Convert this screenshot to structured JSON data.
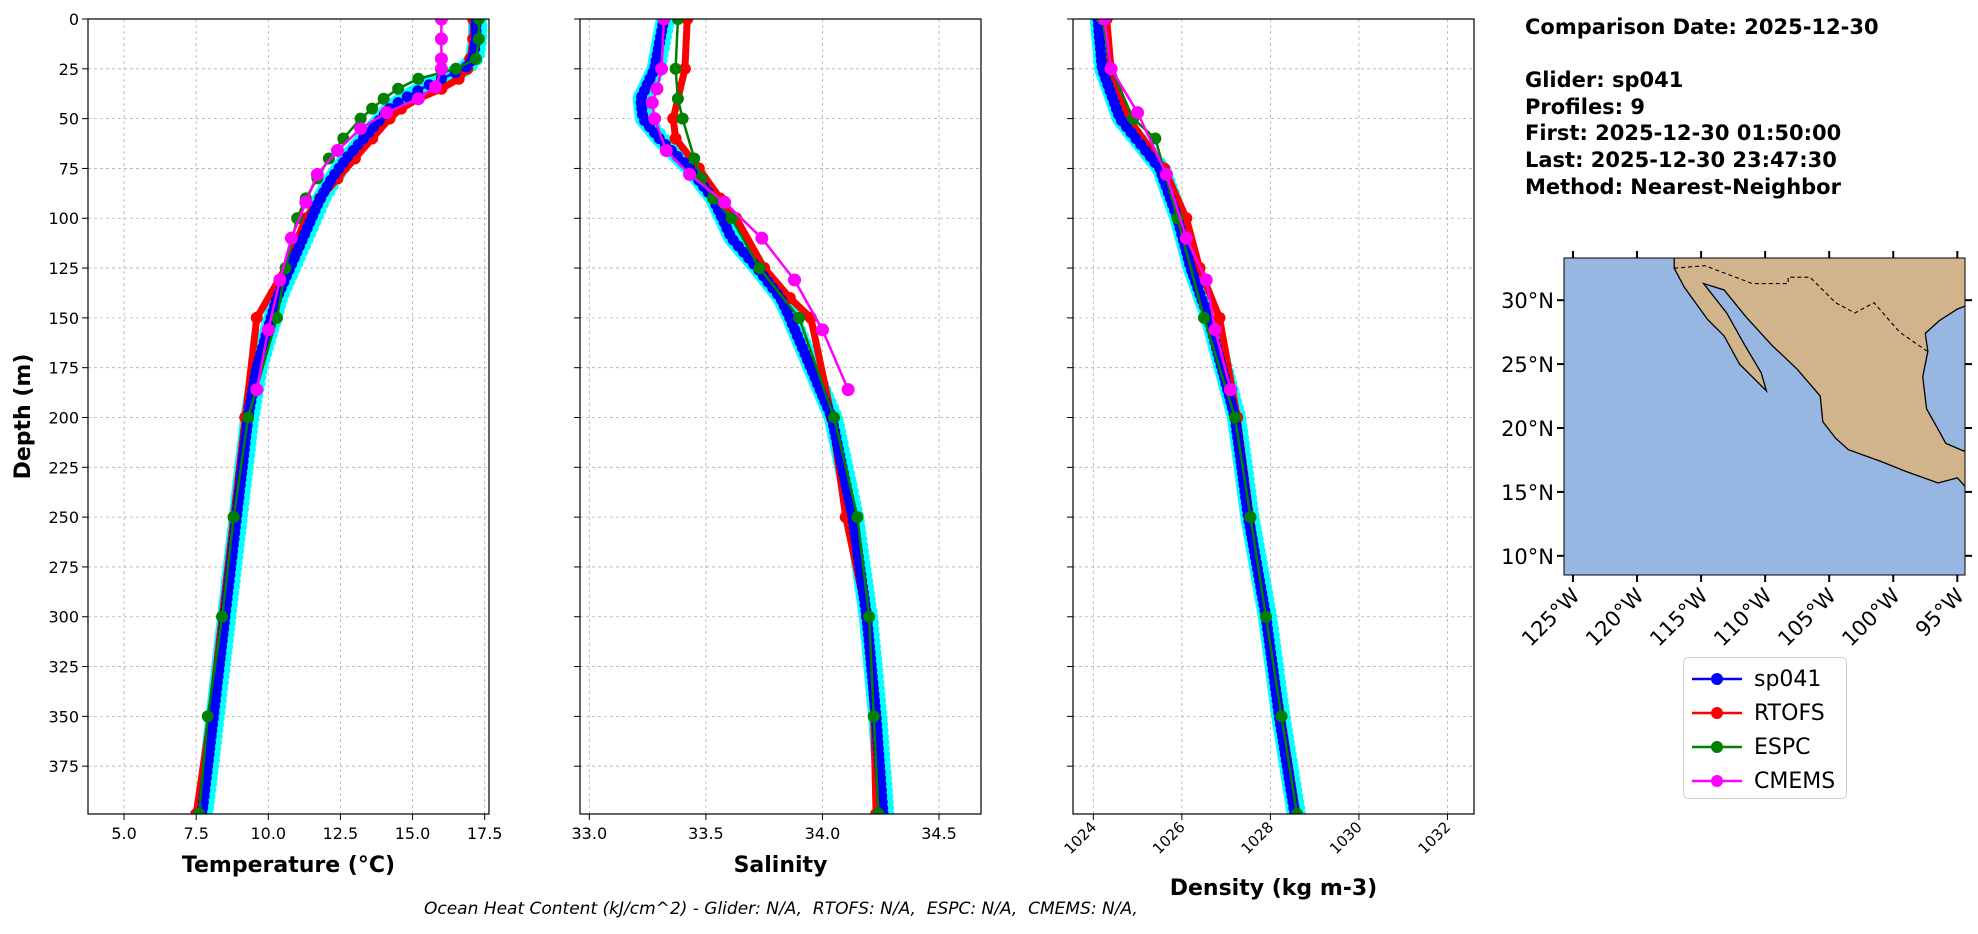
{
  "info": {
    "comparison_date": "Comparison Date: 2025-12-30",
    "glider": "Glider: sp041",
    "profiles": "Profiles: 9",
    "first": "First: 2025-12-30 01:50:00",
    "last": "Last: 2025-12-30 23:47:30",
    "method": "Method: Nearest-Neighbor"
  },
  "footer": "Ocean Heat Content (kJ/cm^2) - Glider: N/A,  RTOFS: N/A,  ESPC: N/A,  CMEMS: N/A,",
  "legend": [
    {
      "name": "sp041",
      "color": "#0000ff"
    },
    {
      "name": "RTOFS",
      "color": "#ff0000"
    },
    {
      "name": "ESPC",
      "color": "#008000"
    },
    {
      "name": "CMEMS",
      "color": "#ff00ff"
    }
  ],
  "glider_profile_color": "#00ffff",
  "chart_data": [
    {
      "type": "line",
      "xlabel": "Temperature (°C)",
      "ylabel": "Depth (m)",
      "xlim": [
        3.75,
        17.65
      ],
      "ylim": [
        399,
        0
      ],
      "xticks": [
        "5.0",
        "7.5",
        "10.0",
        "12.5",
        "15.0",
        "17.5"
      ],
      "yticks": [
        0,
        25,
        50,
        75,
        100,
        125,
        150,
        175,
        200,
        225,
        250,
        275,
        300,
        325,
        350,
        375
      ],
      "grid": true,
      "series": [
        {
          "name": "sp041",
          "depth": [
            0,
            10,
            20,
            25,
            30,
            35,
            40,
            45,
            50,
            60,
            70,
            80,
            90,
            100,
            110,
            120,
            130,
            140,
            150,
            175,
            200,
            225,
            250,
            275,
            300,
            325,
            350,
            375,
            399
          ],
          "values": [
            17.2,
            17.2,
            17.1,
            16.8,
            16.0,
            15.3,
            14.7,
            14.2,
            13.9,
            13.3,
            12.7,
            12.2,
            11.8,
            11.5,
            11.2,
            10.9,
            10.6,
            10.3,
            10.1,
            9.6,
            9.3,
            9.1,
            8.9,
            8.7,
            8.5,
            8.3,
            8.1,
            7.9,
            7.7
          ]
        },
        {
          "name": "RTOFS",
          "depth": [
            0,
            10,
            20,
            25,
            30,
            35,
            40,
            45,
            50,
            60,
            70,
            80,
            90,
            100,
            125,
            150,
            200,
            250,
            300,
            350,
            399
          ],
          "values": [
            17.1,
            17.1,
            17.0,
            16.9,
            16.6,
            16.0,
            15.2,
            14.6,
            14.2,
            13.6,
            13.0,
            12.4,
            11.8,
            11.3,
            10.6,
            9.6,
            9.2,
            8.8,
            8.4,
            8.0,
            7.5
          ]
        },
        {
          "name": "ESPC",
          "depth": [
            0,
            10,
            20,
            25,
            30,
            35,
            40,
            45,
            50,
            60,
            70,
            80,
            90,
            100,
            125,
            150,
            200,
            250,
            300,
            350,
            399
          ],
          "values": [
            17.3,
            17.3,
            17.2,
            16.5,
            15.2,
            14.5,
            14.0,
            13.6,
            13.2,
            12.6,
            12.1,
            11.7,
            11.3,
            11.0,
            10.6,
            10.3,
            9.3,
            8.8,
            8.4,
            7.9,
            7.6
          ]
        },
        {
          "name": "CMEMS",
          "depth": [
            0,
            10,
            20,
            25,
            34,
            40,
            47,
            55,
            66,
            78,
            92,
            110,
            131,
            156,
            186
          ],
          "values": [
            16.0,
            16.0,
            16.0,
            16.0,
            15.8,
            15.2,
            14.1,
            13.2,
            12.4,
            11.7,
            11.3,
            10.8,
            10.4,
            10.0,
            9.6
          ]
        }
      ]
    },
    {
      "type": "line",
      "xlabel": "Salinity",
      "ylabel": "",
      "xlim": [
        32.96,
        34.68
      ],
      "ylim": [
        399,
        0
      ],
      "xticks": [
        "33.0",
        "33.5",
        "34.0",
        "34.5"
      ],
      "grid": true,
      "series": [
        {
          "name": "sp041",
          "depth": [
            0,
            25,
            40,
            50,
            60,
            75,
            90,
            100,
            110,
            125,
            140,
            150,
            200,
            250,
            300,
            350,
            399
          ],
          "values": [
            33.32,
            33.28,
            33.22,
            33.23,
            33.3,
            33.43,
            33.53,
            33.57,
            33.61,
            33.72,
            33.82,
            33.86,
            34.04,
            34.13,
            34.19,
            34.23,
            34.26
          ]
        },
        {
          "name": "RTOFS",
          "depth": [
            0,
            25,
            50,
            60,
            75,
            90,
            100,
            125,
            140,
            150,
            200,
            250,
            300,
            350,
            399
          ],
          "values": [
            33.42,
            33.41,
            33.36,
            33.37,
            33.47,
            33.56,
            33.63,
            33.75,
            33.86,
            33.95,
            34.04,
            34.1,
            34.19,
            34.22,
            34.23
          ]
        },
        {
          "name": "ESPC",
          "depth": [
            0,
            25,
            40,
            50,
            70,
            80,
            90,
            100,
            125,
            150,
            200,
            250,
            300,
            350,
            399
          ],
          "values": [
            33.38,
            33.37,
            33.38,
            33.4,
            33.45,
            33.48,
            33.53,
            33.61,
            33.73,
            33.9,
            34.05,
            34.15,
            34.2,
            34.22,
            34.24
          ]
        },
        {
          "name": "CMEMS",
          "depth": [
            0,
            25,
            35,
            42,
            50,
            66,
            78,
            92,
            110,
            131,
            156,
            186
          ],
          "values": [
            33.32,
            33.31,
            33.29,
            33.27,
            33.28,
            33.33,
            33.43,
            33.58,
            33.74,
            33.88,
            34.0,
            34.11
          ]
        }
      ]
    },
    {
      "type": "line",
      "xlabel": "Density (kg m-3)",
      "ylabel": "",
      "xlim": [
        1023.54,
        1032.6
      ],
      "ylim": [
        399,
        0
      ],
      "xticks": [
        "1024",
        "1026",
        "1028",
        "1030",
        "1032"
      ],
      "grid": true,
      "series": [
        {
          "name": "sp041",
          "depth": [
            0,
            25,
            50,
            75,
            100,
            125,
            150,
            200,
            250,
            300,
            350,
            399
          ],
          "values": [
            1024.1,
            1024.2,
            1024.6,
            1025.5,
            1025.9,
            1026.2,
            1026.6,
            1027.2,
            1027.5,
            1027.9,
            1028.2,
            1028.55
          ]
        },
        {
          "name": "RTOFS",
          "depth": [
            0,
            25,
            50,
            75,
            100,
            125,
            150,
            200,
            250,
            300,
            350,
            399
          ],
          "values": [
            1024.3,
            1024.4,
            1024.8,
            1025.6,
            1026.1,
            1026.4,
            1026.85,
            1027.25,
            1027.55,
            1027.9,
            1028.25,
            1028.6
          ]
        },
        {
          "name": "ESPC",
          "depth": [
            0,
            25,
            50,
            60,
            100,
            150,
            200,
            250,
            300,
            350,
            399
          ],
          "values": [
            1024.2,
            1024.4,
            1024.9,
            1025.4,
            1025.9,
            1026.5,
            1027.2,
            1027.55,
            1027.9,
            1028.25,
            1028.6
          ]
        },
        {
          "name": "CMEMS",
          "depth": [
            0,
            25,
            47,
            78,
            110,
            131,
            156,
            186
          ],
          "values": [
            1024.25,
            1024.4,
            1025.0,
            1025.65,
            1026.1,
            1026.55,
            1026.75,
            1027.1
          ]
        }
      ]
    }
  ],
  "map": {
    "ocean_color": "#97b6e1",
    "land_color": "#d2b48c",
    "lon_range": [
      -125.7,
      -94.4
    ],
    "lat_range": [
      8.5,
      33.3
    ],
    "lat_ticks": [
      "10°N",
      "15°N",
      "20°N",
      "25°N",
      "30°N"
    ],
    "lon_ticks": [
      "125°W",
      "120°W",
      "115°W",
      "110°W",
      "105°W",
      "100°W",
      "95°W"
    ]
  }
}
